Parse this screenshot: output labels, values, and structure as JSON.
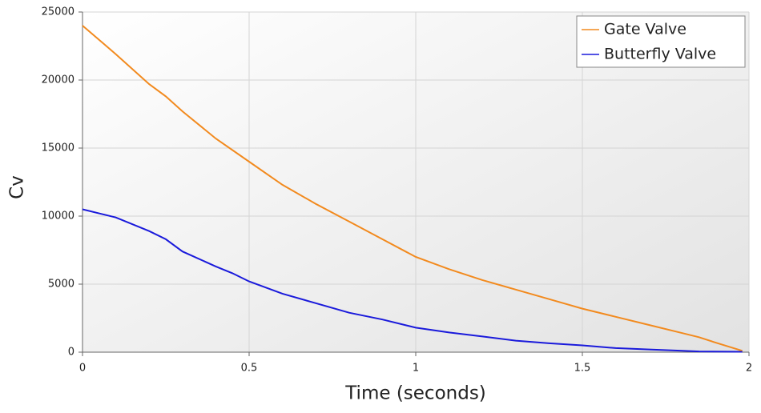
{
  "chart_data": {
    "type": "line",
    "xlabel": "Time (seconds)",
    "ylabel": "Cv",
    "xlim": [
      0,
      2
    ],
    "xticks": [
      0,
      0.5,
      1,
      1.5,
      2
    ],
    "ylim": [
      0,
      25000
    ],
    "yticks": [
      0,
      5000,
      10000,
      15000,
      20000,
      25000
    ],
    "grid": true,
    "legend": "upper right",
    "series": [
      {
        "name": "Gate Valve",
        "color": "#f28a1e",
        "x": [
          0,
          0.1,
          0.2,
          0.25,
          0.3,
          0.4,
          0.5,
          0.6,
          0.7,
          0.8,
          0.9,
          1.0,
          1.1,
          1.2,
          1.3,
          1.4,
          1.5,
          1.6,
          1.7,
          1.8,
          1.85,
          1.9,
          1.98
        ],
        "values": [
          24000,
          21900,
          19700,
          18800,
          17700,
          15700,
          14000,
          12300,
          10900,
          9600,
          8300,
          7000,
          6100,
          5300,
          4600,
          3900,
          3200,
          2600,
          2000,
          1400,
          1100,
          700,
          100
        ]
      },
      {
        "name": "Butterfly Valve",
        "color": "#1a1adb",
        "x": [
          0,
          0.1,
          0.2,
          0.25,
          0.3,
          0.4,
          0.45,
          0.5,
          0.6,
          0.7,
          0.8,
          0.9,
          1.0,
          1.1,
          1.2,
          1.3,
          1.4,
          1.5,
          1.6,
          1.7,
          1.8,
          1.85,
          1.98
        ],
        "values": [
          10500,
          9900,
          8900,
          8300,
          7400,
          6300,
          5800,
          5200,
          4300,
          3600,
          2900,
          2400,
          1800,
          1450,
          1150,
          850,
          650,
          500,
          300,
          200,
          100,
          50,
          30
        ]
      }
    ]
  }
}
